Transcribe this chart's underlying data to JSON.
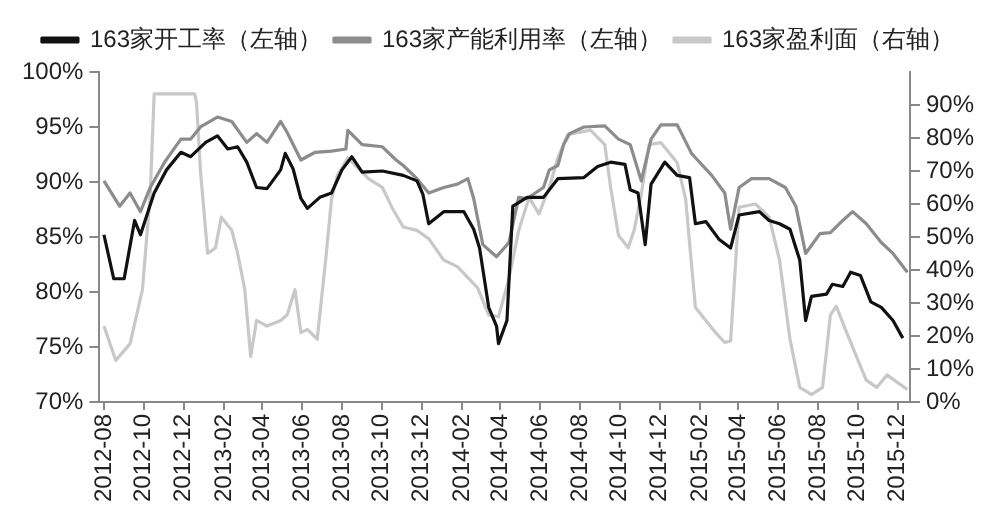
{
  "chart_data": {
    "type": "line",
    "legend": "top",
    "grid": false,
    "marker": "none",
    "line_style": "solid",
    "xlim": [
      "2012-07-25",
      "2015-12-20"
    ],
    "xticks": [
      "2012-08",
      "2012-10",
      "2012-12",
      "2013-02",
      "2013-04",
      "2013-06",
      "2013-08",
      "2013-10",
      "2013-12",
      "2014-02",
      "2014-04",
      "2014-06",
      "2014-08",
      "2014-10",
      "2014-12",
      "2015-02",
      "2015-04",
      "2015-06",
      "2015-08",
      "2015-10",
      "2015-12"
    ],
    "ylim": [
      70,
      100
    ],
    "yticks": [
      {
        "value": 70,
        "label": "70%"
      },
      {
        "value": 75,
        "label": "75%"
      },
      {
        "value": 80,
        "label": "80%"
      },
      {
        "value": 85,
        "label": "85%"
      },
      {
        "value": 90,
        "label": "90%"
      },
      {
        "value": 95,
        "label": "95%"
      },
      {
        "value": 100,
        "label": "100%"
      }
    ],
    "y2lim": [
      0,
      100
    ],
    "y2ticks": [
      {
        "value": 0,
        "label": "0%"
      },
      {
        "value": 10,
        "label": "10%"
      },
      {
        "value": 20,
        "label": "20%"
      },
      {
        "value": 30,
        "label": "30%"
      },
      {
        "value": 40,
        "label": "40%"
      },
      {
        "value": 50,
        "label": "50%"
      },
      {
        "value": 60,
        "label": "60%"
      },
      {
        "value": 70,
        "label": "70%"
      },
      {
        "value": 80,
        "label": "80%"
      },
      {
        "value": 90,
        "label": "90%"
      }
    ],
    "series": [
      {
        "name": "163家开工率（左轴）",
        "color": "#111111",
        "axis": "y",
        "x": [
          "2012-08-01",
          "2012-08-16",
          "2012-09-01",
          "2012-09-17",
          "2012-09-26",
          "2012-10-17",
          "2012-11-05",
          "2012-11-27",
          "2012-12-12",
          "2013-01-04",
          "2013-01-22",
          "2013-02-07",
          "2013-02-22",
          "2013-03-08",
          "2013-03-23",
          "2013-04-08",
          "2013-04-29",
          "2013-05-06",
          "2013-05-18",
          "2013-05-30",
          "2013-06-09",
          "2013-06-28",
          "2013-07-16",
          "2013-08-01",
          "2013-08-16",
          "2013-09-01",
          "2013-10-02",
          "2013-11-03",
          "2013-11-24",
          "2013-12-03",
          "2013-12-12",
          "2014-01-04",
          "2014-02-04",
          "2014-02-19",
          "2014-02-28",
          "2014-03-14",
          "2014-03-26",
          "2014-03-29",
          "2014-04-11",
          "2014-04-20",
          "2014-05-12",
          "2014-06-06",
          "2014-06-28",
          "2014-08-07",
          "2014-08-28",
          "2014-09-17",
          "2014-10-09",
          "2014-10-17",
          "2014-10-29",
          "2014-11-09",
          "2014-11-18",
          "2014-12-09",
          "2014-12-28",
          "2015-01-16",
          "2015-01-25",
          "2015-02-10",
          "2015-03-02",
          "2015-03-20",
          "2015-04-02",
          "2015-05-03",
          "2015-05-18",
          "2015-06-03",
          "2015-06-19",
          "2015-07-04",
          "2015-07-13",
          "2015-07-22",
          "2015-08-14",
          "2015-08-23",
          "2015-09-08",
          "2015-09-20",
          "2015-10-05",
          "2015-10-21",
          "2015-11-06",
          "2015-11-24",
          "2015-12-09"
        ],
        "values": [
          85.2,
          81.2,
          81.2,
          86.5,
          85.2,
          89,
          91.1,
          92.7,
          92.3,
          93.6,
          94.2,
          93,
          93.2,
          91.8,
          89.5,
          89.4,
          91.1,
          92.6,
          91.2,
          88.5,
          87.6,
          88.6,
          89,
          91.1,
          92.3,
          90.9,
          91,
          90.6,
          90.1,
          88.9,
          86.2,
          87.3,
          87.3,
          85.7,
          84,
          78.6,
          76.9,
          75.3,
          77.4,
          87.8,
          88.6,
          88.6,
          90.3,
          90.4,
          91.4,
          91.8,
          91.6,
          89.3,
          89,
          84.3,
          89.8,
          91.8,
          90.6,
          90.4,
          86.2,
          86.4,
          84.8,
          84,
          87,
          87.3,
          86.5,
          86.2,
          85.7,
          82.9,
          77.4,
          79.6,
          79.8,
          80.7,
          80.5,
          81.8,
          81.5,
          79.1,
          78.6,
          77.4,
          75.8
        ]
      },
      {
        "name": "163家产能利用率（左轴）",
        "color": "#8c8c8c",
        "axis": "y",
        "x": [
          "2012-08-01",
          "2012-08-25",
          "2012-09-10",
          "2012-09-26",
          "2012-10-11",
          "2012-11-02",
          "2012-11-27",
          "2012-12-12",
          "2012-12-27",
          "2013-01-22",
          "2013-02-13",
          "2013-03-08",
          "2013-03-23",
          "2013-04-08",
          "2013-04-29",
          "2013-05-09",
          "2013-05-30",
          "2013-06-21",
          "2013-07-16",
          "2013-08-07",
          "2013-08-10",
          "2013-09-01",
          "2013-10-02",
          "2013-10-23",
          "2013-11-03",
          "2013-11-24",
          "2013-12-12",
          "2014-01-04",
          "2014-01-25",
          "2014-02-10",
          "2014-02-19",
          "2014-03-05",
          "2014-03-26",
          "2014-04-14",
          "2014-04-29",
          "2014-05-12",
          "2014-06-06",
          "2014-06-15",
          "2014-06-28",
          "2014-07-07",
          "2014-07-16",
          "2014-08-07",
          "2014-09-08",
          "2014-09-29",
          "2014-10-17",
          "2014-11-03",
          "2014-11-18",
          "2014-12-03",
          "2014-12-28",
          "2015-01-19",
          "2015-01-25",
          "2015-02-19",
          "2015-03-11",
          "2015-03-20",
          "2015-04-02",
          "2015-04-21",
          "2015-05-18",
          "2015-06-12",
          "2015-06-28",
          "2015-07-13",
          "2015-08-04",
          "2015-08-20",
          "2015-09-08",
          "2015-09-23",
          "2015-10-14",
          "2015-11-06",
          "2015-11-24",
          "2015-12-16"
        ],
        "values": [
          90.1,
          87.8,
          89,
          87.3,
          89.5,
          91.8,
          93.9,
          93.9,
          95,
          95.9,
          95.5,
          93.6,
          94.4,
          93.6,
          95.5,
          94.5,
          92,
          92.7,
          92.8,
          93,
          94.7,
          93.4,
          93.2,
          92,
          91.5,
          90.3,
          89,
          89.5,
          89.8,
          90.3,
          88.5,
          84.3,
          83.2,
          84.5,
          88.6,
          88.5,
          89.5,
          91.1,
          91.5,
          93.4,
          94.4,
          95,
          95.1,
          93.9,
          93.4,
          90.1,
          93.9,
          95.2,
          95.2,
          92.6,
          92.2,
          90.6,
          89,
          85.7,
          89.5,
          90.3,
          90.3,
          89.5,
          87.8,
          83.5,
          85.3,
          85.4,
          86.5,
          87.3,
          86.2,
          84.5,
          83.5,
          81.8
        ]
      },
      {
        "name": "163家盈利面（右轴）",
        "color": "#c8c8c8",
        "axis": "y2",
        "x": [
          "2012-08-01",
          "2012-08-19",
          "2012-09-10",
          "2012-09-29",
          "2012-10-11",
          "2012-10-17",
          "2012-12-18",
          "2012-12-21",
          "2012-12-27",
          "2013-01-07",
          "2013-01-19",
          "2013-01-28",
          "2013-02-13",
          "2013-02-22",
          "2013-03-05",
          "2013-03-14",
          "2013-03-23",
          "2013-04-08",
          "2013-04-29",
          "2013-05-09",
          "2013-05-21",
          "2013-05-30",
          "2013-06-09",
          "2013-06-24",
          "2013-07-07",
          "2013-07-16",
          "2013-07-25",
          "2013-08-10",
          "2013-09-11",
          "2013-10-02",
          "2013-10-17",
          "2013-11-03",
          "2013-11-24",
          "2013-12-12",
          "2014-01-04",
          "2014-01-25",
          "2014-02-25",
          "2014-03-14",
          "2014-03-29",
          "2014-04-14",
          "2014-04-29",
          "2014-05-15",
          "2014-05-30",
          "2014-06-15",
          "2014-06-28",
          "2014-07-13",
          "2014-08-17",
          "2014-09-08",
          "2014-09-17",
          "2014-09-29",
          "2014-10-14",
          "2014-10-23",
          "2014-11-03",
          "2014-11-15",
          "2014-12-03",
          "2014-12-28",
          "2015-01-10",
          "2015-01-25",
          "2015-02-10",
          "2015-02-25",
          "2015-03-11",
          "2015-03-20",
          "2015-04-02",
          "2015-04-27",
          "2015-05-18",
          "2015-06-03",
          "2015-06-19",
          "2015-07-04",
          "2015-07-22",
          "2015-08-08",
          "2015-08-20",
          "2015-08-29",
          "2015-09-14",
          "2015-09-29",
          "2015-10-14",
          "2015-10-30",
          "2015-11-15",
          "2015-11-30",
          "2015-12-16"
        ],
        "values": [
          23,
          12.6,
          17.6,
          34,
          63,
          93.4,
          93.4,
          90.7,
          70,
          45,
          46.7,
          56,
          52,
          45,
          34,
          13.7,
          24.7,
          23,
          24.7,
          26.4,
          34,
          21,
          22,
          19,
          43,
          61.5,
          68.7,
          74,
          67.6,
          65,
          58.8,
          53,
          52,
          49.5,
          43,
          41,
          34.6,
          26.4,
          25.8,
          37.4,
          52,
          62,
          57,
          65,
          74,
          81,
          82.4,
          78,
          65,
          50.5,
          46.7,
          52,
          63,
          78,
          78.6,
          72.5,
          61.5,
          28.6,
          24.7,
          21,
          18,
          18.5,
          59,
          60,
          56,
          43,
          19,
          4.4,
          2.2,
          4.4,
          26.4,
          29,
          21,
          13.7,
          6.6,
          4.4,
          8.2,
          6,
          3.8
        ]
      }
    ]
  }
}
